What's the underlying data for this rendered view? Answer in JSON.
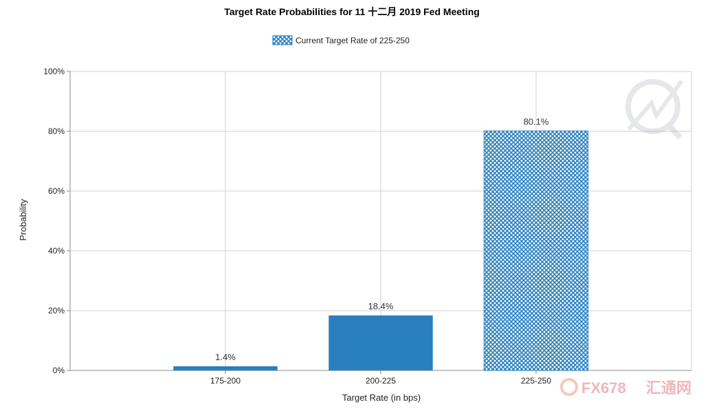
{
  "chart_data": {
    "type": "bar",
    "title": "Target Rate Probabilities for 11 十二月 2019  Fed Meeting",
    "xlabel": "Target Rate (in bps)",
    "ylabel": "Probability",
    "categories": [
      "175-200",
      "200-225",
      "225-250"
    ],
    "values": [
      1.4,
      18.4,
      80.1
    ],
    "data_labels": [
      "1.4%",
      "18.4%",
      "80.1%"
    ],
    "ylim": [
      0,
      100
    ],
    "yticks": [
      "0%",
      "20%",
      "40%",
      "60%",
      "80%",
      "100%"
    ],
    "grid": true,
    "legend": {
      "position": "top-center",
      "entries": [
        "Current Target Rate of 225-250"
      ]
    },
    "highlight_category": "225-250",
    "colors": {
      "bar": "#2a7fbe",
      "highlight": "#2a7fbe",
      "grid": "#d0d0d0",
      "axis": "#888888"
    }
  },
  "watermark": {
    "text_latin": "FX678",
    "text_cjk": "汇通网",
    "color": "#e8a0a8"
  }
}
